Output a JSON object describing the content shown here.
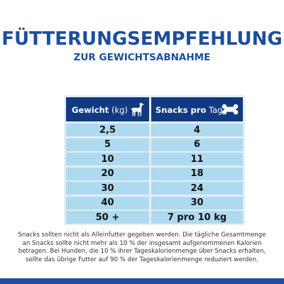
{
  "heading": {
    "title": "FÜTTERUNGSEMPFEHLUNG",
    "subtitle": "ZUR GEWICHTSABNAHME"
  },
  "table": {
    "col1_header_bold": "Gewicht",
    "col1_header_unit": "(kg)",
    "col1_icon": "dog-icon",
    "col2_header_bold": "Snacks pro",
    "col2_header_unit": "Tag",
    "col2_icon": "bone-icon",
    "rows": [
      {
        "weight": "2,5",
        "snacks": "4"
      },
      {
        "weight": "5",
        "snacks": "6"
      },
      {
        "weight": "10",
        "snacks": "11"
      },
      {
        "weight": "20",
        "snacks": "18"
      },
      {
        "weight": "30",
        "snacks": "24"
      },
      {
        "weight": "40",
        "snacks": "30"
      },
      {
        "weight": "50 +",
        "snacks": "7 pro 10 kg"
      }
    ]
  },
  "footnote": "Snacks sollten nicht als Alleinfutter gegeben werden. Die tägliche Gesamtmenge an Snacks sollte nicht mehr als 10 % der insgesamt aufgenommenen Kalorien betragen. Bei Hunden, die 10 % ihrer Tageskalorienmenge über Snacks erhalten, sollte das übrige Futter auf 90 % der Tageskalorienmenge reduziert werden.",
  "colors": {
    "title": "#1b4f9c",
    "header_bg": "#113a80",
    "cell_bg": "#aedaef",
    "table_bg": "#e4edf6",
    "bottom_bar": "#1b4f9c"
  }
}
